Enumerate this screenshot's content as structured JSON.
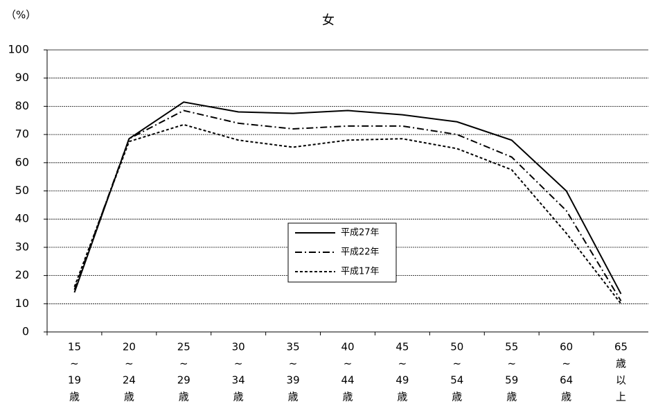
{
  "chart_data": {
    "type": "line",
    "title": "女",
    "y_label": "（%）",
    "categories": [
      [
        "15",
        "~",
        "19",
        "歳"
      ],
      [
        "20",
        "~",
        "24",
        "歳"
      ],
      [
        "25",
        "~",
        "29",
        "歳"
      ],
      [
        "30",
        "~",
        "34",
        "歳"
      ],
      [
        "35",
        "~",
        "39",
        "歳"
      ],
      [
        "40",
        "~",
        "44",
        "歳"
      ],
      [
        "45",
        "~",
        "49",
        "歳"
      ],
      [
        "50",
        "~",
        "54",
        "歳"
      ],
      [
        "55",
        "~",
        "59",
        "歳"
      ],
      [
        "60",
        "~",
        "64",
        "歳"
      ],
      [
        "65",
        "歳",
        "以",
        "上"
      ]
    ],
    "series": [
      {
        "name": "平成27年",
        "color": "#000000",
        "dash": "solid",
        "values": [
          14,
          68.5,
          81.5,
          78,
          77.5,
          78.5,
          77,
          74.5,
          68,
          50,
          13.5
        ]
      },
      {
        "name": "平成22年",
        "color": "#000000",
        "dash": "dashdot",
        "values": [
          15,
          68.5,
          78.5,
          74,
          72,
          73,
          73,
          70,
          62,
          43,
          11
        ]
      },
      {
        "name": "平成17年",
        "color": "#000000",
        "dash": "dashed",
        "values": [
          16,
          67.5,
          73.5,
          68,
          65.5,
          68,
          68.5,
          65,
          57.5,
          35,
          10
        ]
      }
    ],
    "ylim": [
      0,
      100
    ],
    "yticks": [
      0,
      10,
      20,
      30,
      40,
      50,
      60,
      70,
      80,
      90,
      100
    ],
    "grid": true
  }
}
